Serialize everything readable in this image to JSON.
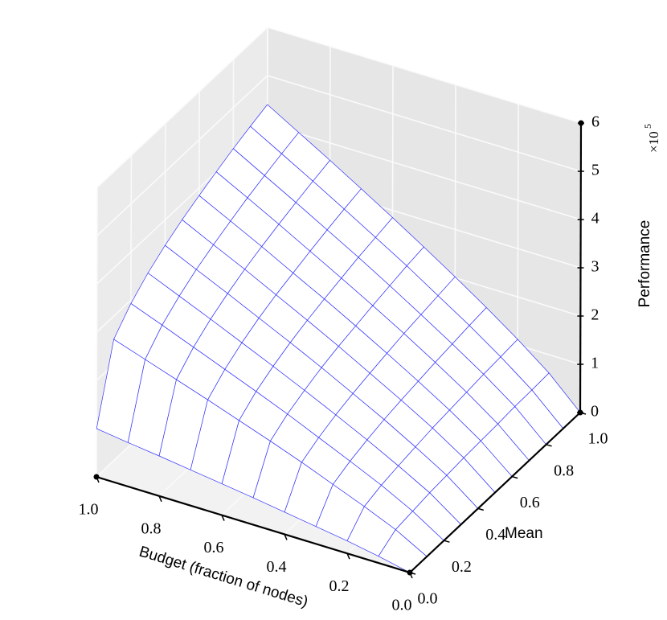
{
  "chart_data": {
    "type": "wireframe",
    "x_label": "Budget (fraction of nodes)",
    "y_label": "Mean",
    "z_label": "Performance",
    "z_multiplier": {
      "base": "×10",
      "exponent": "5"
    },
    "color": "#3333ff",
    "grid": true,
    "x": [
      0,
      0.1,
      0.2,
      0.3,
      0.4,
      0.5,
      0.6,
      0.7,
      0.8,
      0.9,
      1.0
    ],
    "y": [
      0,
      0.1,
      0.2,
      0.3,
      0.4,
      0.5,
      0.6,
      0.7,
      0.8,
      0.9,
      1.0
    ],
    "z": [
      [
        0,
        0,
        0,
        0,
        0,
        0,
        0,
        0,
        0,
        0,
        0
      ],
      [
        0.14,
        0.36,
        0.41,
        0.46,
        0.49,
        0.52,
        0.54,
        0.56,
        0.59,
        0.6,
        0.62
      ],
      [
        0.26,
        0.64,
        0.75,
        0.82,
        0.88,
        0.94,
        0.98,
        1.02,
        1.06,
        1.09,
        1.12
      ],
      [
        0.36,
        0.9,
        1.05,
        1.16,
        1.25,
        1.32,
        1.38,
        1.44,
        1.49,
        1.54,
        1.58
      ],
      [
        0.46,
        1.16,
        1.34,
        1.48,
        1.59,
        1.68,
        1.76,
        1.84,
        1.9,
        1.96,
        2.02
      ],
      [
        0.56,
        1.4,
        1.63,
        1.79,
        1.93,
        2.04,
        2.13,
        2.22,
        2.3,
        2.38,
        2.44
      ],
      [
        0.65,
        1.63,
        1.9,
        2.09,
        2.25,
        2.38,
        2.49,
        2.59,
        2.69,
        2.77,
        2.85
      ],
      [
        0.74,
        1.86,
        2.16,
        2.38,
        2.56,
        2.71,
        2.83,
        2.95,
        3.06,
        3.16,
        3.25
      ],
      [
        0.83,
        2.08,
        2.42,
        2.67,
        2.87,
        3.04,
        3.18,
        3.31,
        3.43,
        3.54,
        3.64
      ],
      [
        0.91,
        2.3,
        2.68,
        2.95,
        3.17,
        3.35,
        3.51,
        3.66,
        3.79,
        3.91,
        4.02
      ],
      [
        1.0,
        2.52,
        2.93,
        3.23,
        3.47,
        3.67,
        3.84,
        4.0,
        4.15,
        4.28,
        4.4
      ]
    ],
    "xlim": [
      0,
      1
    ],
    "ylim": [
      0,
      1
    ],
    "zlim": [
      0,
      6
    ],
    "xticks": [
      {
        "value": 0,
        "label": "0.0"
      },
      0.2,
      0.4,
      0.6,
      0.8,
      {
        "value": 1,
        "label": "1.0"
      }
    ],
    "yticks": [
      {
        "value": 0,
        "label": "0.0"
      },
      0.2,
      0.4,
      0.6,
      0.8,
      {
        "value": 1,
        "label": "1.0"
      }
    ],
    "zticks": [
      0,
      1,
      2,
      3,
      4,
      5,
      6
    ]
  }
}
